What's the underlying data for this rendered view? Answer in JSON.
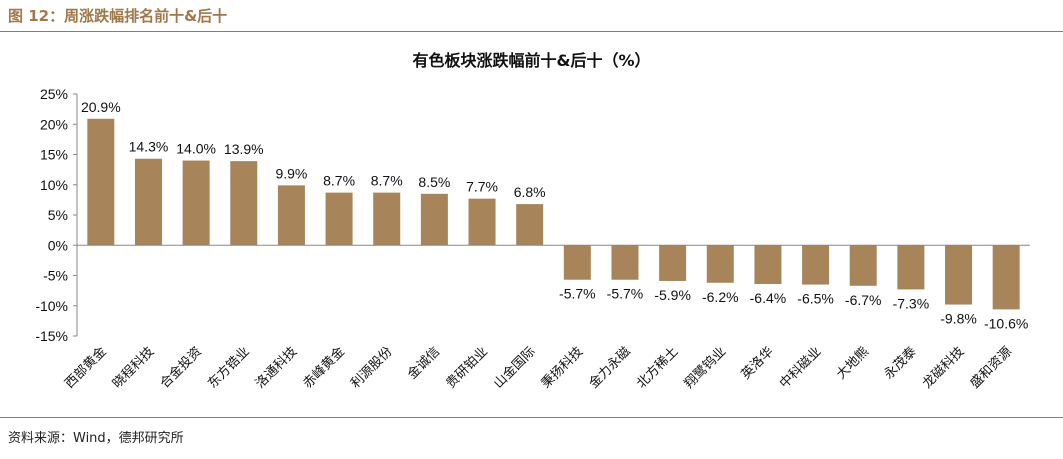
{
  "figure": {
    "caption": "图 12：周涨跌幅排名前十&后十",
    "source": "资料来源：Wind，德邦研究所"
  },
  "colors": {
    "bar": "#a8845a",
    "accent": "#a0784a",
    "axis": "#888888"
  },
  "chart_data": {
    "type": "bar",
    "title": "有色板块涨跌幅前十&后十（%）",
    "xlabel": "",
    "ylabel": "",
    "ylim": [
      -15,
      25
    ],
    "yticks": [
      -15,
      -10,
      -5,
      0,
      5,
      10,
      15,
      20,
      25
    ],
    "ytick_labels": [
      "-15%",
      "-10%",
      "-5%",
      "0%",
      "5%",
      "10%",
      "15%",
      "20%",
      "25%"
    ],
    "grid": false,
    "categories": [
      "西部黄金",
      "晓程科技",
      "合金投资",
      "东方锆业",
      "洛通科技",
      "赤峰黄金",
      "利源股份",
      "金诚信",
      "贵研铂业",
      "山金国际",
      "秉扬科技",
      "金力永磁",
      "北方稀土",
      "翔鹭钨业",
      "英洛华",
      "中科磁业",
      "大地熊",
      "永茂泰",
      "龙磁科技",
      "盛和资源"
    ],
    "values": [
      20.9,
      14.3,
      14.0,
      13.9,
      9.9,
      8.7,
      8.7,
      8.5,
      7.7,
      6.8,
      -5.7,
      -5.7,
      -5.9,
      -6.2,
      -6.4,
      -6.5,
      -6.7,
      -7.3,
      -9.8,
      -10.6
    ],
    "data_labels": [
      "20.9%",
      "14.3%",
      "14.0%",
      "13.9%",
      "9.9%",
      "8.7%",
      "8.7%",
      "8.5%",
      "7.7%",
      "6.8%",
      "-5.7%",
      "-5.7%",
      "-5.9%",
      "-6.2%",
      "-6.4%",
      "-6.5%",
      "-6.7%",
      "-7.3%",
      "-9.8%",
      "-10.6%"
    ]
  }
}
